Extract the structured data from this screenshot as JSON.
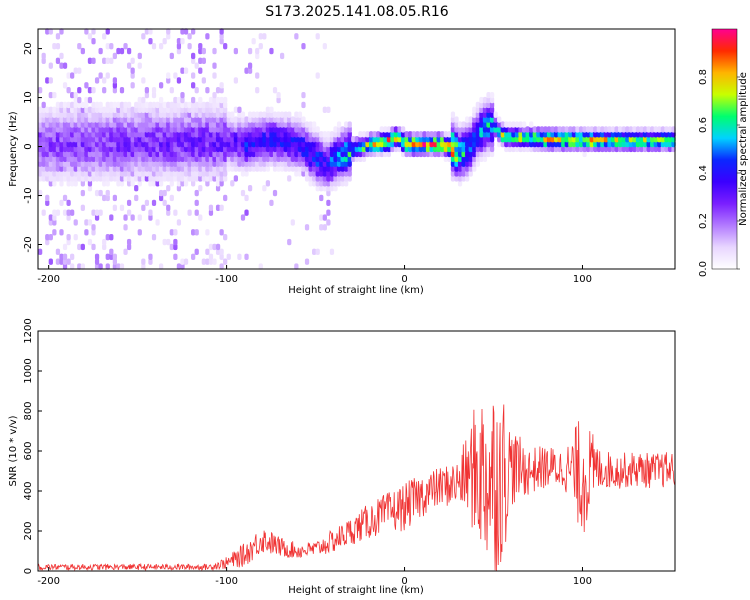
{
  "title": "S173.2025.141.08.05.R16",
  "chart_data": [
    {
      "type": "heatmap",
      "xlabel": "Height of straight line (km)",
      "ylabel": "Frequency (Hz)",
      "xlim": [
        -206,
        152
      ],
      "ylim": [
        -25,
        24
      ],
      "xticks": [
        -200,
        -100,
        0,
        100
      ],
      "yticks": [
        -20,
        -10,
        0,
        10,
        20
      ],
      "colorbar": {
        "label": "Normalized spectral amplitude",
        "range": [
          0,
          1
        ],
        "ticks": [
          "0.0",
          "0.2",
          "0.4",
          "0.6",
          "0.8"
        ],
        "colors": [
          "#ffffff",
          "#e8d6ff",
          "#b27aff",
          "#7a1fff",
          "#3a00ff",
          "#0a28ff",
          "#00d2ff",
          "#00ff6e",
          "#c8ff00",
          "#ffb400",
          "#ff2a00",
          "#ff0090"
        ]
      },
      "ridge_x": [
        -205,
        -100,
        -90,
        -75,
        -60,
        -50,
        -45,
        -40,
        -30,
        -20,
        -10,
        -5,
        0,
        10,
        20,
        25,
        30,
        35,
        40,
        45,
        50,
        55,
        60,
        80,
        100,
        120,
        150
      ],
      "ridge_y": [
        0,
        0.5,
        0,
        1,
        0,
        -3,
        -4,
        -3,
        -1,
        0,
        0.5,
        1.5,
        0,
        0,
        0,
        -0.5,
        -2,
        -1,
        2,
        4,
        3.5,
        1.5,
        1.5,
        1,
        0.8,
        0.8,
        0.8
      ],
      "ridge_amp": [
        0.25,
        0.3,
        0.4,
        0.4,
        0.4,
        0.45,
        0.4,
        0.5,
        0.6,
        0.8,
        0.9,
        0.7,
        0.95,
        0.95,
        0.85,
        0.9,
        0.6,
        0.5,
        0.5,
        0.55,
        0.55,
        0.75,
        0.7,
        0.8,
        0.8,
        0.7,
        0.7
      ]
    },
    {
      "type": "line",
      "xlabel": "Height of straight line (km)",
      "ylabel": "SNR (10 * v/v)",
      "xlim": [
        -206,
        152
      ],
      "ylim": [
        0,
        1200
      ],
      "xticks": [
        -200,
        -100,
        0,
        100
      ],
      "yticks": [
        0,
        200,
        400,
        600,
        800,
        1000,
        1200
      ],
      "line_color": "#f03232",
      "series": [
        {
          "x": [
            -206,
            -150,
            -110,
            -100,
            -90,
            -80,
            -70,
            -60,
            -50,
            -40,
            -30,
            -20,
            -10,
            0,
            10,
            20,
            30,
            35,
            40,
            45,
            50,
            55,
            60,
            70,
            80,
            90,
            100,
            110,
            120,
            130,
            140,
            152
          ],
          "values": [
            20,
            20,
            20,
            40,
            80,
            160,
            120,
            100,
            110,
            150,
            200,
            250,
            290,
            320,
            380,
            420,
            440,
            480,
            500,
            480,
            460,
            480,
            520,
            500,
            520,
            510,
            480,
            510,
            500,
            510,
            500,
            510
          ],
          "noise_amp": [
            15,
            15,
            15,
            30,
            60,
            70,
            50,
            40,
            40,
            60,
            70,
            90,
            100,
            120,
            110,
            100,
            120,
            200,
            350,
            450,
            500,
            450,
            200,
            120,
            110,
            100,
            320,
            100,
            90,
            90,
            90,
            90
          ]
        }
      ]
    }
  ]
}
